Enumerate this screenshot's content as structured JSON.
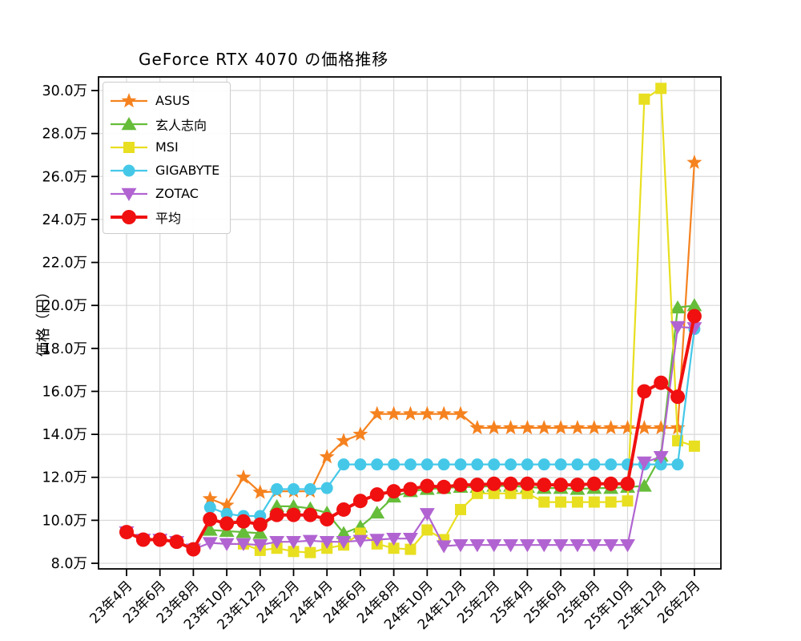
{
  "chart_data": {
    "type": "line",
    "title": "GeForce RTX 4070 の価格推移",
    "ylabel": "価格（円）",
    "xlabel": "",
    "grid": true,
    "legend_position": "upper left",
    "unit_note": "values are prices in 万円 (10k JPY)",
    "ylim": [
      7.75,
      30.65
    ],
    "y_ticks": [
      8,
      10,
      12,
      14,
      16,
      18,
      20,
      22,
      24,
      26,
      28,
      30
    ],
    "y_tick_labels": [
      "8.0万",
      "10.0万",
      "12.0万",
      "14.0万",
      "16.0万",
      "18.0万",
      "20.0万",
      "22.0万",
      "24.0万",
      "26.0万",
      "28.0万",
      "30.0万"
    ],
    "x_tick_every": 2,
    "x_tick_labels": [
      "23年4月",
      "23年6月",
      "23年8月",
      "23年10月",
      "23年12月",
      "24年2月",
      "24年4月",
      "24年6月",
      "24年8月",
      "24年10月",
      "24年12月",
      "25年2月",
      "25年4月",
      "25年6月",
      "25年8月",
      "25年10月",
      "25年12月",
      "26年2月"
    ],
    "x_categories": [
      "23年4月",
      "23年5月",
      "23年6月",
      "23年7月",
      "23年8月",
      "23年9月",
      "23年10月",
      "23年11月",
      "23年12月",
      "24年1月",
      "24年2月",
      "24年3月",
      "24年4月",
      "24年5月",
      "24年6月",
      "24年7月",
      "24年8月",
      "24年9月",
      "24年10月",
      "24年11月",
      "24年12月",
      "25年1月",
      "25年2月",
      "25年3月",
      "25年4月",
      "25年5月",
      "25年6月",
      "25年7月",
      "25年8月",
      "25年9月",
      "25年10月",
      "25年11月",
      "25年12月",
      "26年1月",
      "26年2月"
    ],
    "series": [
      {
        "name": "ASUS",
        "color": "#f5821f",
        "marker": "star",
        "marker_size": 10,
        "line_width": 2.2,
        "values": [
          null,
          null,
          null,
          null,
          null,
          11.0,
          10.7,
          12.0,
          11.3,
          11.35,
          11.35,
          11.35,
          12.95,
          13.7,
          14.0,
          14.95,
          14.95,
          14.95,
          14.95,
          14.95,
          14.95,
          14.3,
          14.3,
          14.3,
          14.3,
          14.3,
          14.3,
          14.3,
          14.3,
          14.3,
          14.3,
          14.3,
          14.3,
          14.3,
          26.65
        ]
      },
      {
        "name": "玄人志向",
        "color": "#66bd3a",
        "marker": "triangle-up",
        "marker_size": 9,
        "line_width": 2.2,
        "values": [
          null,
          null,
          null,
          null,
          null,
          9.55,
          9.5,
          9.45,
          9.4,
          10.65,
          10.65,
          10.55,
          10.35,
          9.4,
          9.7,
          10.35,
          11.1,
          11.35,
          11.45,
          11.5,
          11.55,
          11.55,
          11.6,
          11.6,
          11.55,
          11.5,
          11.5,
          11.45,
          11.5,
          11.5,
          11.55,
          11.6,
          13.0,
          19.9,
          20.0
        ]
      },
      {
        "name": "MSI",
        "color": "#e8df20",
        "marker": "square",
        "marker_size": 7,
        "line_width": 2.2,
        "values": [
          null,
          null,
          null,
          null,
          null,
          null,
          null,
          8.9,
          8.6,
          8.7,
          8.55,
          8.5,
          8.7,
          8.85,
          9.4,
          8.9,
          8.7,
          8.65,
          9.55,
          9.1,
          10.5,
          11.25,
          11.25,
          11.25,
          11.25,
          10.85,
          10.85,
          10.85,
          10.85,
          10.85,
          10.9,
          29.6,
          30.1,
          13.7,
          13.45
        ]
      },
      {
        "name": "GIGABYTE",
        "color": "#45c8e8",
        "marker": "circle",
        "marker_size": 7.5,
        "line_width": 2.2,
        "values": [
          null,
          null,
          null,
          null,
          null,
          10.6,
          10.3,
          10.2,
          10.2,
          11.45,
          11.45,
          11.45,
          11.5,
          12.6,
          12.6,
          12.6,
          12.6,
          12.6,
          12.6,
          12.6,
          12.6,
          12.6,
          12.6,
          12.6,
          12.6,
          12.6,
          12.6,
          12.6,
          12.6,
          12.6,
          12.6,
          12.6,
          12.6,
          12.6,
          18.9
        ]
      },
      {
        "name": "ZOTAC",
        "color": "#b164d1",
        "marker": "triangle-down",
        "marker_size": 9,
        "line_width": 2.2,
        "values": [
          9.45,
          9.1,
          9.1,
          9.0,
          8.65,
          8.95,
          8.9,
          8.9,
          8.85,
          9.0,
          9.0,
          9.05,
          9.0,
          9.0,
          9.05,
          9.1,
          9.15,
          9.15,
          10.3,
          8.8,
          8.85,
          8.85,
          8.85,
          8.85,
          8.85,
          8.85,
          8.85,
          8.85,
          8.85,
          8.85,
          8.85,
          12.7,
          12.95,
          19.0,
          18.95
        ]
      },
      {
        "name": "平均",
        "color": "#f01010",
        "marker": "circle",
        "marker_size": 9,
        "line_width": 4,
        "values": [
          9.45,
          9.1,
          9.1,
          9.0,
          8.65,
          10.05,
          9.85,
          9.95,
          9.8,
          10.25,
          10.25,
          10.25,
          10.05,
          10.5,
          10.9,
          11.2,
          11.35,
          11.45,
          11.6,
          11.55,
          11.65,
          11.65,
          11.7,
          11.7,
          11.7,
          11.65,
          11.65,
          11.65,
          11.7,
          11.7,
          11.7,
          16.0,
          16.4,
          15.75,
          19.5
        ]
      }
    ],
    "axis_color": "#000000",
    "grid_color": "#d9d9d9"
  }
}
